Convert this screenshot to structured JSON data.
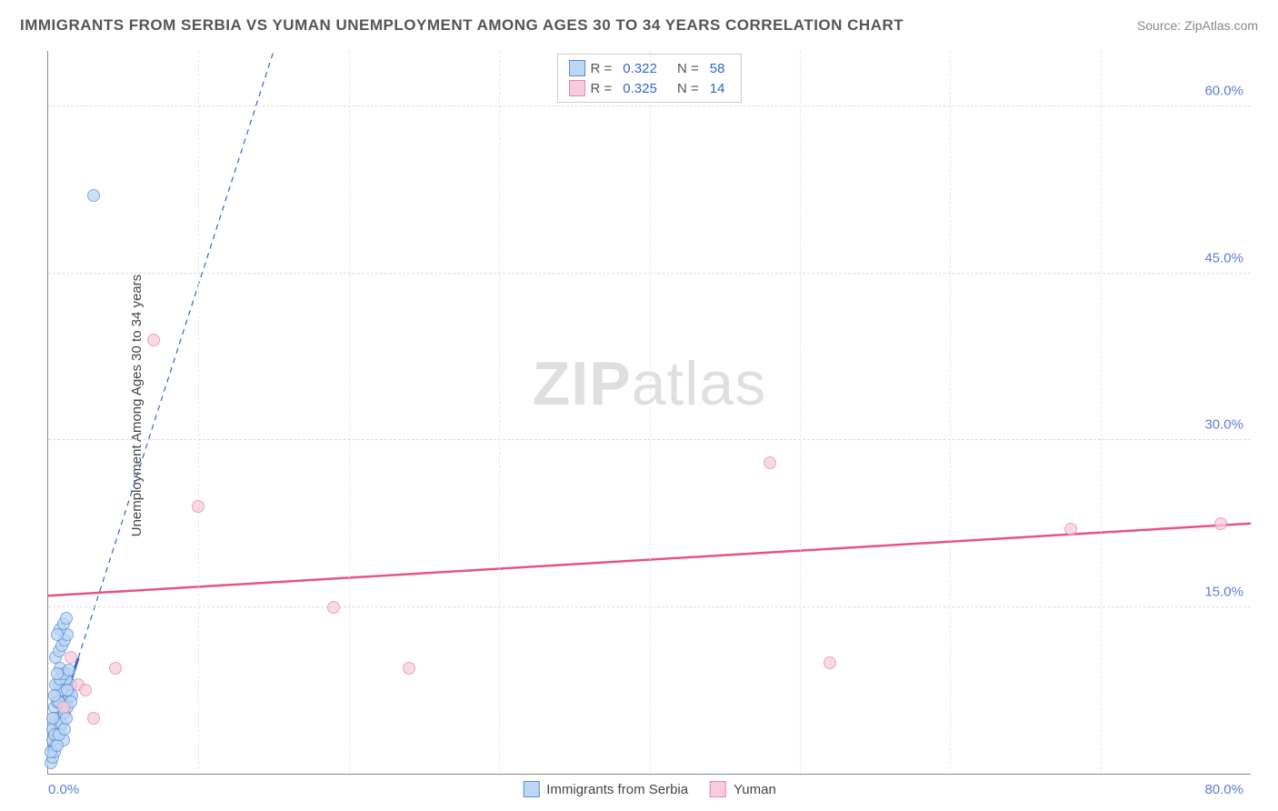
{
  "header": {
    "title": "IMMIGRANTS FROM SERBIA VS YUMAN UNEMPLOYMENT AMONG AGES 30 TO 34 YEARS CORRELATION CHART",
    "source": "Source: ZipAtlas.com"
  },
  "watermark": {
    "brand_a": "ZIP",
    "brand_b": "atlas"
  },
  "chart": {
    "type": "scatter",
    "ylabel": "Unemployment Among Ages 30 to 34 years",
    "background_color": "#ffffff",
    "grid_color": "#dddddd",
    "axis_color": "#888888",
    "tick_color": "#5b7fd6",
    "tick_fontsize": 15,
    "label_fontsize": 15,
    "xlim": [
      0,
      80
    ],
    "ylim": [
      0,
      65
    ],
    "xticks_vlines": [
      10,
      20,
      30,
      40,
      50,
      60,
      70
    ],
    "xtick_min_label": "0.0%",
    "xtick_max_label": "80.0%",
    "yticks": [
      {
        "v": 15,
        "label": "15.0%"
      },
      {
        "v": 30,
        "label": "30.0%"
      },
      {
        "v": 45,
        "label": "45.0%"
      },
      {
        "v": 60,
        "label": "60.0%"
      }
    ],
    "series": [
      {
        "key": "serbia",
        "legend_label": "Immigrants from Serbia",
        "marker_fill": "#bcd6f5",
        "marker_stroke": "#5a8fd6",
        "marker_size_px": 14,
        "trend": {
          "x1": 0,
          "y1": 2,
          "x2": 15,
          "y2": 65,
          "style": "solid_then_dashed",
          "dash_from_x": 2,
          "color": "#3366cc",
          "width": 2
        },
        "r_value": "0.322",
        "n_value": "58",
        "points": [
          [
            0.2,
            1.0
          ],
          [
            0.3,
            1.5
          ],
          [
            0.4,
            2.0
          ],
          [
            0.5,
            2.5
          ],
          [
            0.3,
            3.0
          ],
          [
            0.6,
            3.5
          ],
          [
            0.8,
            4.0
          ],
          [
            0.5,
            4.5
          ],
          [
            0.7,
            5.0
          ],
          [
            1.0,
            5.5
          ],
          [
            0.9,
            6.0
          ],
          [
            1.2,
            6.5
          ],
          [
            0.6,
            7.0
          ],
          [
            1.1,
            7.5
          ],
          [
            1.4,
            7.0
          ],
          [
            0.7,
            8.0
          ],
          [
            1.0,
            8.5
          ],
          [
            1.3,
            9.0
          ],
          [
            0.8,
            9.5
          ],
          [
            0.4,
            6.0
          ],
          [
            0.3,
            4.0
          ],
          [
            0.5,
            5.0
          ],
          [
            0.2,
            2.0
          ],
          [
            0.6,
            6.5
          ],
          [
            0.9,
            7.5
          ],
          [
            1.5,
            8.0
          ],
          [
            1.2,
            8.5
          ],
          [
            0.7,
            6.5
          ],
          [
            1.1,
            5.5
          ],
          [
            0.8,
            4.5
          ],
          [
            1.0,
            3.0
          ],
          [
            0.4,
            3.5
          ],
          [
            0.6,
            2.5
          ],
          [
            0.9,
            4.5
          ],
          [
            1.3,
            6.0
          ],
          [
            1.6,
            7.0
          ],
          [
            0.5,
            8.0
          ],
          [
            0.8,
            8.5
          ],
          [
            1.0,
            9.0
          ],
          [
            1.4,
            9.3
          ],
          [
            0.3,
            5.0
          ],
          [
            0.4,
            7.0
          ],
          [
            0.6,
            9.0
          ],
          [
            0.7,
            3.5
          ],
          [
            1.1,
            4.0
          ],
          [
            1.2,
            5.0
          ],
          [
            1.3,
            7.5
          ],
          [
            1.5,
            6.5
          ],
          [
            0.5,
            10.5
          ],
          [
            0.7,
            11.0
          ],
          [
            0.9,
            11.5
          ],
          [
            1.1,
            12.0
          ],
          [
            1.3,
            12.5
          ],
          [
            0.8,
            13.0
          ],
          [
            1.0,
            13.5
          ],
          [
            1.2,
            14.0
          ],
          [
            0.6,
            12.5
          ],
          [
            3.0,
            52.0
          ]
        ]
      },
      {
        "key": "yuman",
        "legend_label": "Yuman",
        "marker_fill": "#f7cdd9",
        "marker_stroke": "#e28aa5",
        "marker_size_px": 14,
        "trend": {
          "x1": 0,
          "y1": 16,
          "x2": 80,
          "y2": 22.5,
          "style": "solid",
          "color": "#e75480",
          "width": 2.5
        },
        "r_value": "0.325",
        "n_value": "14",
        "points": [
          [
            1.5,
            10.5
          ],
          [
            3.0,
            5.0
          ],
          [
            4.5,
            9.5
          ],
          [
            2.0,
            8.0
          ],
          [
            7.0,
            39.0
          ],
          [
            10.0,
            24.0
          ],
          [
            19.0,
            15.0
          ],
          [
            24.0,
            9.5
          ],
          [
            48.0,
            28.0
          ],
          [
            52.0,
            10.0
          ],
          [
            68.0,
            22.0
          ],
          [
            78.0,
            22.5
          ],
          [
            1.0,
            6.0
          ],
          [
            2.5,
            7.5
          ]
        ]
      }
    ],
    "legend_box": {
      "r_label": "R =",
      "n_label": "N ="
    }
  }
}
